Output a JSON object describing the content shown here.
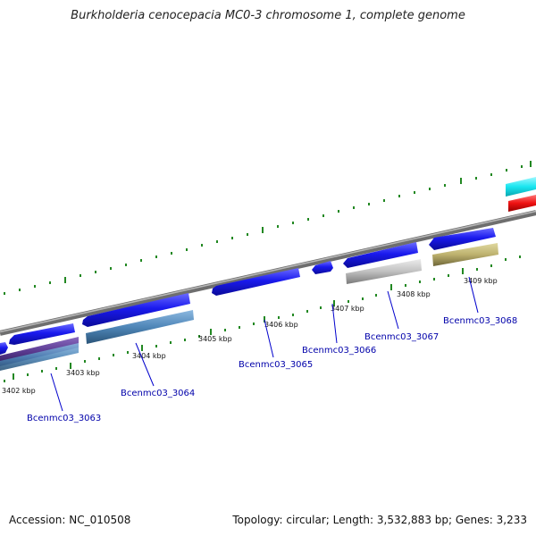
{
  "header": {
    "title": "Burkholderia cenocepacia MC0-3 chromosome 1, complete genome"
  },
  "footer": {
    "accession": "Accession: NC_010508",
    "summary": "Topology: circular; Length: 3,532,883 bp; Genes: 3,233"
  },
  "kbp_labels": [
    "3402 kbp",
    "3403 kbp",
    "3404 kbp",
    "3405 kbp",
    "3406 kbp",
    "3407 kbp",
    "3408 kbp",
    "3409 kbp"
  ],
  "gene_labels": [
    "Bcenmc03_3063",
    "Bcenmc03_3064",
    "Bcenmc03_3065",
    "Bcenmc03_3066",
    "Bcenmc03_3067",
    "Bcenmc03_3068"
  ],
  "colors": {
    "backbone": "#888888",
    "tick": "#228822",
    "gene_blue": "#1a1aee",
    "cyan": "#19e6f0",
    "red": "#ee1111",
    "purple": "#5a3a90",
    "steelblue": "#4f86b8",
    "grey": "#c0c0c0",
    "khaki": "#bdb16e",
    "label": "#0000aa"
  }
}
